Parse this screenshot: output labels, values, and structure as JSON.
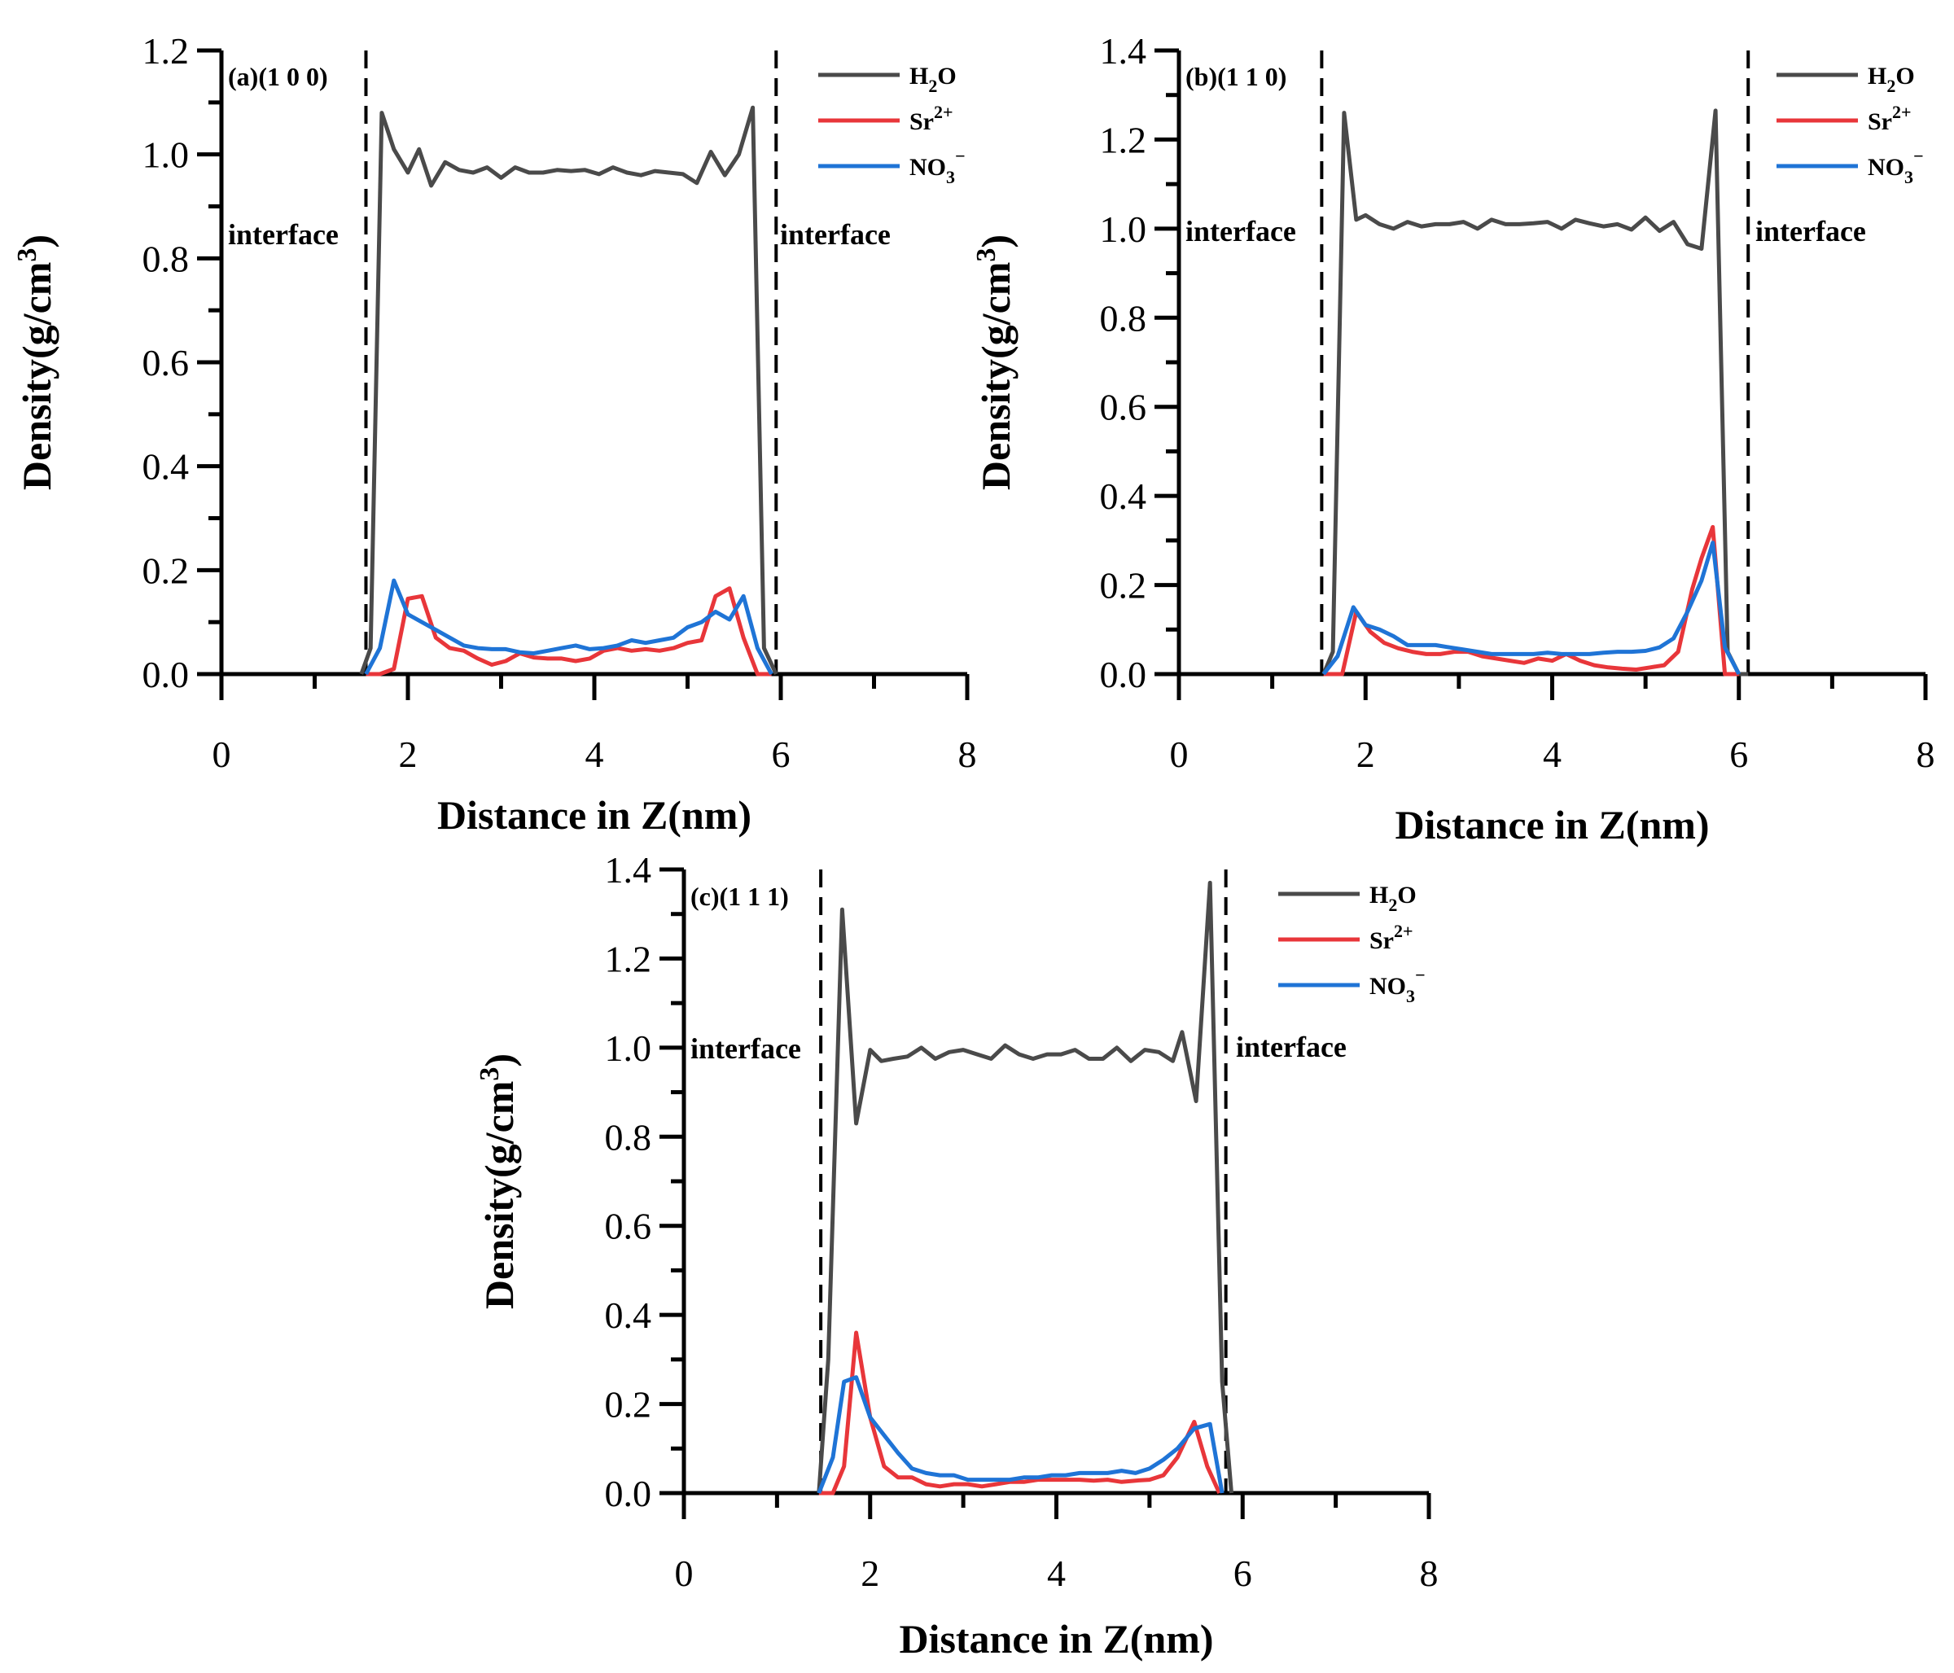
{
  "chart_data": [
    {
      "type": "line",
      "panel_label": "(a)(1 0 0)",
      "xlabel": "Distance in Z(nm)",
      "ylabel_prefix": "Density(g/cm",
      "ylabel_sup": "3",
      "ylabel_suffix": ")",
      "xlim": [
        0,
        8
      ],
      "ylim": [
        0,
        1.2
      ],
      "xticks": [
        "0",
        "2",
        "4",
        "6",
        "8"
      ],
      "yticks": [
        "0.0",
        "0.2",
        "0.4",
        "0.6",
        "0.8",
        "1.0",
        "1.2"
      ],
      "interfaces": [
        1.55,
        5.95
      ],
      "interface_label": "interface",
      "legend": [
        {
          "base": "H",
          "sub": "2",
          "tail": "O",
          "sup": ""
        },
        {
          "base": "Sr",
          "sub": "",
          "tail": "",
          "sup": "2+"
        },
        {
          "base": "NO",
          "sub": "3",
          "tail": "",
          "sup": "−"
        }
      ],
      "series": [
        {
          "name": "H2O",
          "color": "#4a4a4a",
          "x": [
            1.5,
            1.6,
            1.72,
            1.85,
            2.0,
            2.12,
            2.25,
            2.4,
            2.55,
            2.7,
            2.85,
            3.0,
            3.15,
            3.3,
            3.45,
            3.6,
            3.75,
            3.9,
            4.05,
            4.2,
            4.35,
            4.5,
            4.65,
            4.8,
            4.95,
            5.1,
            5.25,
            5.4,
            5.55,
            5.7,
            5.82,
            5.95
          ],
          "y": [
            0.0,
            0.05,
            1.08,
            1.01,
            0.965,
            1.01,
            0.94,
            0.985,
            0.97,
            0.965,
            0.975,
            0.955,
            0.975,
            0.965,
            0.965,
            0.97,
            0.968,
            0.97,
            0.962,
            0.975,
            0.965,
            0.96,
            0.968,
            0.965,
            0.962,
            0.945,
            1.005,
            0.96,
            1.0,
            1.09,
            0.05,
            0.0
          ]
        },
        {
          "name": "Sr2+",
          "color": "#e8363a",
          "x": [
            1.55,
            1.7,
            1.85,
            2.0,
            2.15,
            2.3,
            2.45,
            2.6,
            2.75,
            2.9,
            3.05,
            3.2,
            3.35,
            3.5,
            3.65,
            3.8,
            3.95,
            4.1,
            4.25,
            4.4,
            4.55,
            4.7,
            4.85,
            5.0,
            5.15,
            5.3,
            5.45,
            5.6,
            5.75,
            5.9
          ],
          "y": [
            0.0,
            0.0,
            0.01,
            0.145,
            0.15,
            0.07,
            0.05,
            0.045,
            0.03,
            0.018,
            0.025,
            0.04,
            0.032,
            0.03,
            0.03,
            0.025,
            0.03,
            0.045,
            0.05,
            0.045,
            0.048,
            0.045,
            0.05,
            0.06,
            0.065,
            0.15,
            0.165,
            0.07,
            0.0,
            0.0
          ]
        },
        {
          "name": "NO3-",
          "color": "#1f74d6",
          "x": [
            1.55,
            1.7,
            1.85,
            2.0,
            2.15,
            2.3,
            2.45,
            2.6,
            2.75,
            2.9,
            3.05,
            3.2,
            3.35,
            3.5,
            3.65,
            3.8,
            3.95,
            4.1,
            4.25,
            4.4,
            4.55,
            4.7,
            4.85,
            5.0,
            5.15,
            5.3,
            5.45,
            5.6,
            5.75,
            5.9
          ],
          "y": [
            0.0,
            0.05,
            0.18,
            0.115,
            0.1,
            0.085,
            0.07,
            0.055,
            0.05,
            0.048,
            0.048,
            0.042,
            0.04,
            0.045,
            0.05,
            0.055,
            0.048,
            0.05,
            0.055,
            0.065,
            0.06,
            0.065,
            0.07,
            0.09,
            0.1,
            0.12,
            0.105,
            0.15,
            0.05,
            0.0
          ]
        }
      ]
    },
    {
      "type": "line",
      "panel_label": "(b)(1 1 0)",
      "xlabel": "Distance in Z(nm)",
      "ylabel_prefix": "Density(g/cm",
      "ylabel_sup": "3",
      "ylabel_suffix": ")",
      "xlim": [
        0,
        8
      ],
      "ylim": [
        0,
        1.4
      ],
      "xticks": [
        "0",
        "2",
        "4",
        "6",
        "8"
      ],
      "yticks": [
        "0.0",
        "0.2",
        "0.4",
        "0.6",
        "0.8",
        "1.0",
        "1.2",
        "1.4"
      ],
      "interfaces": [
        1.53,
        6.1
      ],
      "interface_label": "interface",
      "legend": [
        {
          "base": "H",
          "sub": "2",
          "tail": "O",
          "sup": ""
        },
        {
          "base": "Sr",
          "sub": "",
          "tail": "",
          "sup": "2+"
        },
        {
          "base": "NO",
          "sub": "3",
          "tail": "",
          "sup": "−"
        }
      ],
      "series": [
        {
          "name": "H2O",
          "color": "#4a4a4a",
          "x": [
            1.55,
            1.65,
            1.77,
            1.9,
            2.0,
            2.15,
            2.3,
            2.45,
            2.6,
            2.75,
            2.9,
            3.05,
            3.2,
            3.35,
            3.5,
            3.65,
            3.8,
            3.95,
            4.1,
            4.25,
            4.4,
            4.55,
            4.7,
            4.85,
            5.0,
            5.15,
            5.3,
            5.45,
            5.6,
            5.75,
            5.88,
            6.0,
            6.1
          ],
          "y": [
            0.0,
            0.05,
            1.26,
            1.02,
            1.03,
            1.01,
            1.0,
            1.015,
            1.005,
            1.01,
            1.01,
            1.015,
            1.0,
            1.02,
            1.01,
            1.01,
            1.012,
            1.015,
            1.0,
            1.02,
            1.012,
            1.005,
            1.01,
            0.998,
            1.025,
            0.995,
            1.015,
            0.965,
            0.955,
            1.265,
            0.05,
            0.0,
            0.0
          ]
        },
        {
          "name": "Sr2+",
          "color": "#e8363a",
          "x": [
            1.55,
            1.75,
            1.9,
            2.05,
            2.2,
            2.35,
            2.5,
            2.65,
            2.8,
            2.95,
            3.1,
            3.25,
            3.4,
            3.55,
            3.7,
            3.85,
            4.0,
            4.15,
            4.3,
            4.45,
            4.6,
            4.75,
            4.9,
            5.05,
            5.2,
            5.35,
            5.5,
            5.6,
            5.72,
            5.85,
            6.0
          ],
          "y": [
            0.0,
            0.0,
            0.14,
            0.095,
            0.07,
            0.058,
            0.05,
            0.045,
            0.045,
            0.05,
            0.05,
            0.04,
            0.035,
            0.03,
            0.025,
            0.035,
            0.03,
            0.045,
            0.03,
            0.02,
            0.015,
            0.012,
            0.01,
            0.015,
            0.02,
            0.05,
            0.19,
            0.26,
            0.33,
            0.0,
            0.0
          ]
        },
        {
          "name": "NO3-",
          "color": "#1f74d6",
          "x": [
            1.55,
            1.7,
            1.87,
            2.0,
            2.15,
            2.3,
            2.45,
            2.6,
            2.75,
            2.9,
            3.05,
            3.2,
            3.35,
            3.5,
            3.65,
            3.8,
            3.95,
            4.1,
            4.25,
            4.4,
            4.55,
            4.7,
            4.85,
            5.0,
            5.15,
            5.3,
            5.45,
            5.6,
            5.72,
            5.85,
            6.0
          ],
          "y": [
            0.0,
            0.04,
            0.15,
            0.11,
            0.1,
            0.085,
            0.065,
            0.065,
            0.065,
            0.06,
            0.055,
            0.05,
            0.045,
            0.045,
            0.045,
            0.045,
            0.048,
            0.045,
            0.045,
            0.045,
            0.048,
            0.05,
            0.05,
            0.052,
            0.06,
            0.08,
            0.14,
            0.21,
            0.295,
            0.06,
            0.0
          ]
        }
      ]
    },
    {
      "type": "line",
      "panel_label": "(c)(1 1 1)",
      "xlabel": "Distance in Z(nm)",
      "ylabel_prefix": "Density(g/cm",
      "ylabel_sup": "3",
      "ylabel_suffix": ")",
      "xlim": [
        0,
        8
      ],
      "ylim": [
        0,
        1.4
      ],
      "xticks": [
        "0",
        "2",
        "4",
        "6",
        "8"
      ],
      "yticks": [
        "0.0",
        "0.2",
        "0.4",
        "0.6",
        "0.8",
        "1.0",
        "1.2",
        "1.4"
      ],
      "interfaces": [
        1.47,
        5.82
      ],
      "interface_label": "interface",
      "legend": [
        {
          "base": "H",
          "sub": "2",
          "tail": "O",
          "sup": ""
        },
        {
          "base": "Sr",
          "sub": "",
          "tail": "",
          "sup": "2+"
        },
        {
          "base": "NO",
          "sub": "3",
          "tail": "",
          "sup": "−"
        }
      ],
      "series": [
        {
          "name": "H2O",
          "color": "#4a4a4a",
          "x": [
            1.45,
            1.55,
            1.7,
            1.85,
            2.0,
            2.12,
            2.25,
            2.4,
            2.55,
            2.7,
            2.85,
            3.0,
            3.15,
            3.3,
            3.45,
            3.6,
            3.75,
            3.9,
            4.05,
            4.2,
            4.35,
            4.5,
            4.65,
            4.8,
            4.95,
            5.1,
            5.25,
            5.35,
            5.5,
            5.65,
            5.78,
            5.88
          ],
          "y": [
            0.0,
            0.3,
            1.31,
            0.83,
            0.995,
            0.97,
            0.975,
            0.98,
            1.0,
            0.975,
            0.99,
            0.995,
            0.985,
            0.975,
            1.005,
            0.985,
            0.975,
            0.985,
            0.985,
            0.995,
            0.975,
            0.975,
            1.0,
            0.97,
            0.995,
            0.99,
            0.97,
            1.035,
            0.88,
            1.37,
            0.25,
            0.0
          ]
        },
        {
          "name": "Sr2+",
          "color": "#e8363a",
          "x": [
            1.45,
            1.6,
            1.72,
            1.85,
            2.0,
            2.15,
            2.3,
            2.45,
            2.6,
            2.75,
            2.9,
            3.05,
            3.2,
            3.35,
            3.5,
            3.65,
            3.8,
            3.95,
            4.1,
            4.25,
            4.4,
            4.55,
            4.7,
            4.85,
            5.0,
            5.15,
            5.3,
            5.48,
            5.62,
            5.75
          ],
          "y": [
            0.0,
            0.0,
            0.06,
            0.36,
            0.17,
            0.06,
            0.035,
            0.035,
            0.02,
            0.015,
            0.02,
            0.02,
            0.015,
            0.02,
            0.025,
            0.025,
            0.03,
            0.03,
            0.03,
            0.03,
            0.028,
            0.03,
            0.025,
            0.028,
            0.03,
            0.04,
            0.08,
            0.16,
            0.06,
            0.0
          ]
        },
        {
          "name": "NO3-",
          "color": "#1f74d6",
          "x": [
            1.45,
            1.6,
            1.72,
            1.85,
            2.0,
            2.15,
            2.3,
            2.45,
            2.6,
            2.75,
            2.9,
            3.05,
            3.2,
            3.35,
            3.5,
            3.65,
            3.8,
            3.95,
            4.1,
            4.25,
            4.4,
            4.55,
            4.7,
            4.85,
            5.0,
            5.15,
            5.3,
            5.48,
            5.65,
            5.78
          ],
          "y": [
            0.0,
            0.08,
            0.25,
            0.26,
            0.17,
            0.13,
            0.09,
            0.055,
            0.045,
            0.04,
            0.04,
            0.03,
            0.03,
            0.03,
            0.03,
            0.035,
            0.035,
            0.04,
            0.04,
            0.045,
            0.045,
            0.045,
            0.05,
            0.045,
            0.055,
            0.075,
            0.1,
            0.145,
            0.155,
            0.0
          ]
        }
      ]
    }
  ]
}
